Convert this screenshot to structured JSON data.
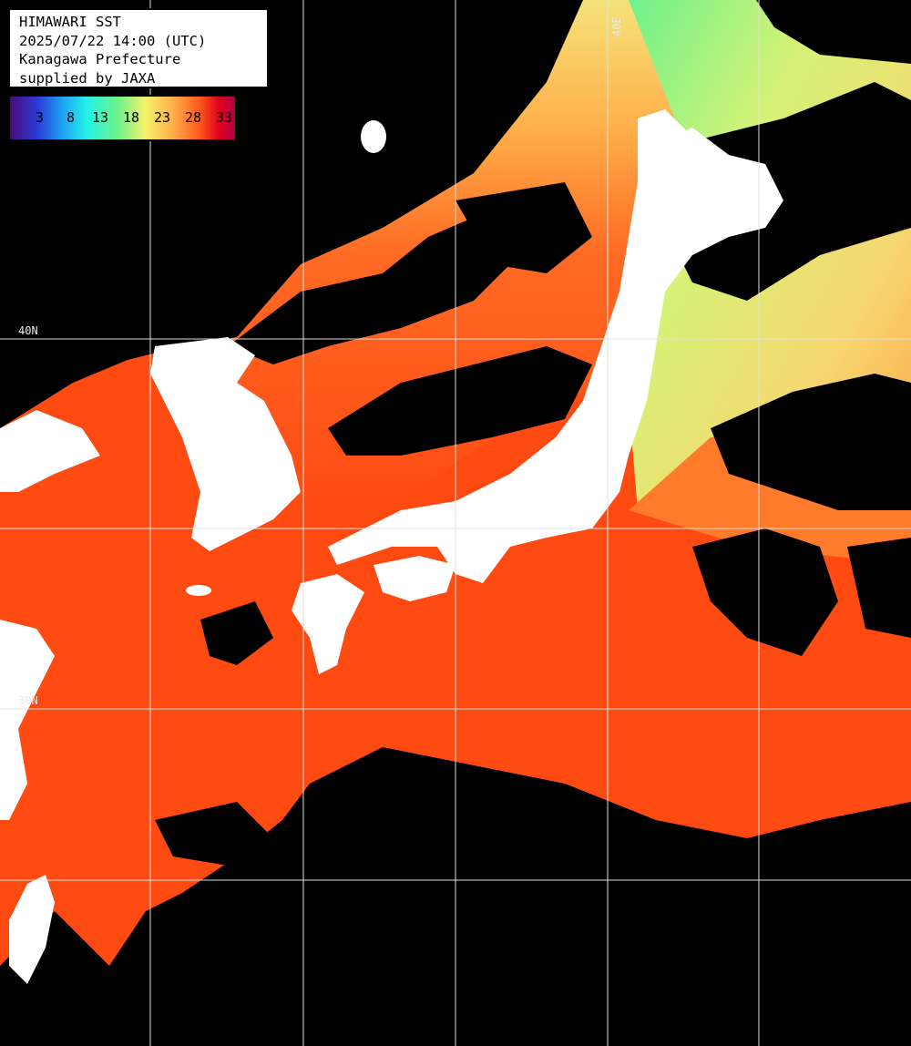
{
  "header": {
    "line1": "HIMAWARI SST",
    "line2": "2025/07/22 14:00 (UTC)",
    "line3": "Kanagawa Prefecture",
    "line4": "supplied by JAXA"
  },
  "legend": {
    "ticks": [
      "3",
      "8",
      "13",
      "18",
      "23",
      "28",
      "33"
    ],
    "colors": [
      "#4b0a7a",
      "#2a3ad6",
      "#1ea8f5",
      "#21f2e6",
      "#6ef28a",
      "#f6f26a",
      "#ffb24a",
      "#ff5a1e",
      "#e0001e",
      "#b0004a"
    ]
  },
  "grid_labels": {
    "top": "40E",
    "left_upper": "40N",
    "left_lower": "30N"
  },
  "colors": {
    "land": "#ffffff",
    "cloud": "#000000",
    "warm_sea": "#ff4a12",
    "mid_sea": "#ff7a2a",
    "cool_sea": "#f4d870",
    "cold_sea": "#9ef27a"
  }
}
